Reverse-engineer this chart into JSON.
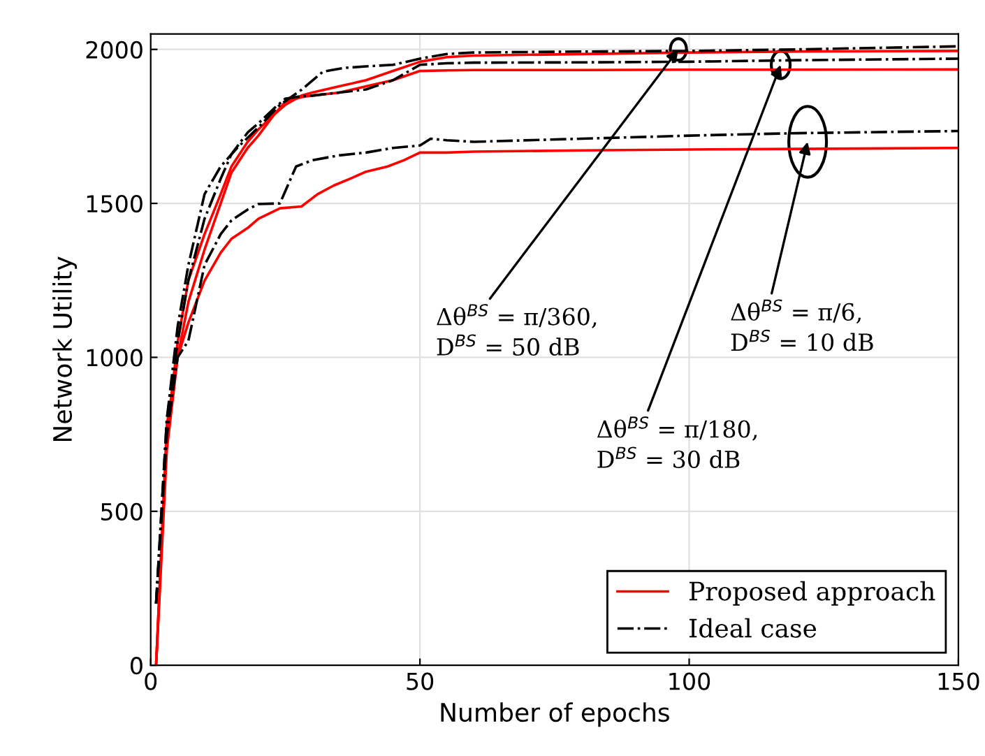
{
  "chart_data": {
    "type": "line",
    "xlabel": "Number of epochs",
    "ylabel": "Network Utility",
    "xlim": [
      0,
      150
    ],
    "ylim": [
      0,
      2050
    ],
    "xticks": [
      0,
      50,
      100,
      150
    ],
    "yticks": [
      0,
      500,
      1000,
      1500,
      2000
    ],
    "grid": true,
    "legend": "bottom right",
    "series": [
      {
        "name": "Proposed approach",
        "color": "#ff0000",
        "line_style": "solid",
        "x": [
          1,
          3,
          5,
          7,
          10,
          13,
          15,
          18,
          20,
          23,
          25,
          28,
          30,
          35,
          40,
          45,
          50,
          55,
          60,
          80,
          100,
          120,
          150
        ],
        "values": [
          0,
          750,
          1050,
          1250,
          1400,
          1530,
          1620,
          1700,
          1740,
          1790,
          1820,
          1850,
          1860,
          1880,
          1900,
          1930,
          1960,
          1975,
          1980,
          1985,
          1990,
          1993,
          1995
        ]
      },
      {
        "color": "#ff0000",
        "line_style": "solid",
        "x": [
          1,
          3,
          5,
          7,
          10,
          13,
          15,
          18,
          20,
          23,
          25,
          28,
          30,
          35,
          40,
          45,
          50,
          55,
          60,
          80,
          100,
          120,
          150
        ],
        "values": [
          0,
          700,
          1000,
          1180,
          1350,
          1500,
          1600,
          1680,
          1720,
          1790,
          1830,
          1845,
          1850,
          1860,
          1880,
          1900,
          1930,
          1932,
          1933,
          1933,
          1934,
          1934,
          1935
        ]
      },
      {
        "color": "#ff0000",
        "line_style": "solid",
        "x": [
          1,
          3,
          5,
          7,
          10,
          13,
          15,
          18,
          20,
          24,
          28,
          31,
          34,
          37,
          40,
          44,
          47,
          50,
          55,
          60,
          80,
          100,
          120,
          150
        ],
        "values": [
          0,
          780,
          1000,
          1113,
          1249,
          1340,
          1385,
          1420,
          1450,
          1484,
          1490,
          1530,
          1558,
          1580,
          1603,
          1620,
          1640,
          1665,
          1665,
          1668,
          1672,
          1675,
          1677,
          1680
        ]
      },
      {
        "name": "Ideal case",
        "color": "#000000",
        "line_style": "dashdot",
        "x": [
          1,
          3,
          5,
          7,
          10,
          13,
          16,
          20,
          24,
          28,
          32,
          36,
          40,
          45,
          50,
          55,
          60,
          80,
          100,
          120,
          150
        ],
        "values": [
          200,
          800,
          1100,
          1300,
          1530,
          1620,
          1679,
          1747,
          1820,
          1869,
          1928,
          1940,
          1945,
          1950,
          1970,
          1985,
          1990,
          1993,
          1995,
          2000,
          2010
        ]
      },
      {
        "color": "#000000",
        "line_style": "dashdot",
        "x": [
          1,
          3,
          5,
          7,
          10,
          13,
          15,
          18,
          20,
          23,
          25,
          28,
          30,
          35,
          40,
          45,
          50,
          55,
          60,
          80,
          100,
          120,
          150
        ],
        "values": [
          200,
          800,
          1050,
          1250,
          1450,
          1580,
          1660,
          1730,
          1760,
          1810,
          1840,
          1848,
          1850,
          1860,
          1870,
          1900,
          1950,
          1955,
          1957,
          1958,
          1960,
          1965,
          1970
        ]
      },
      {
        "color": "#000000",
        "line_style": "dashdot",
        "x": [
          1,
          3,
          5,
          7,
          10,
          13,
          15,
          18,
          20,
          24,
          27,
          30,
          35,
          40,
          45,
          50,
          52,
          55,
          60,
          80,
          100,
          120,
          150
        ],
        "values": [
          200,
          750,
          1000,
          1054,
          1300,
          1400,
          1445,
          1480,
          1498,
          1500,
          1620,
          1640,
          1656,
          1665,
          1680,
          1688,
          1710,
          1705,
          1700,
          1710,
          1720,
          1728,
          1735
        ]
      }
    ],
    "annotations": [
      {
        "text": "Δθ$^{BS}$ = π/360,",
        "x": 98,
        "y": 2000
      },
      "D$^{BS}$ = 50 dB",
      {
        "text": "Δθ$^{BS}$ = π/180,",
        "x": 117,
        "y": 1950
      },
      "D$^{BS}$ = 30 dB",
      {
        "text": "Δθ$^{BS}$ = π/6,",
        "x": 122,
        "y": 1700
      },
      "D$^{BS}$ = 10 dB"
    ]
  }
}
